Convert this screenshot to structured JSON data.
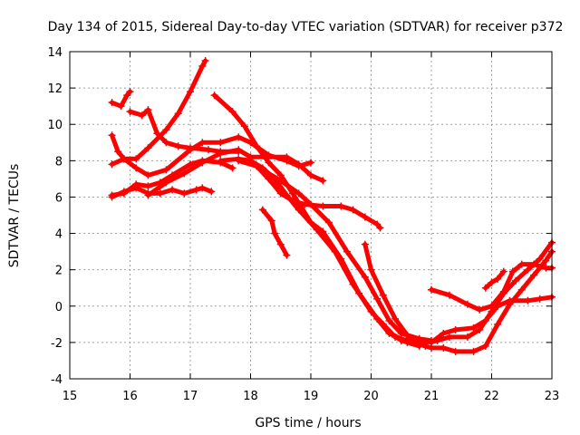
{
  "chart_data": {
    "type": "line",
    "title": "Day 134 of 2015, Sidereal Day-to-day VTEC variation (SDTVAR) for receiver p372",
    "xlabel": "GPS time / hours",
    "ylabel": "SDTVAR / TECUs",
    "xlim": [
      15,
      23
    ],
    "ylim": [
      -4,
      14
    ],
    "x_ticks": [
      "15",
      "16",
      "17",
      "18",
      "19",
      "20",
      "21",
      "22",
      "23"
    ],
    "y_ticks": [
      "-4",
      "-2",
      "0",
      "2",
      "4",
      "6",
      "8",
      "10",
      "12",
      "14"
    ],
    "grid": true,
    "marker": "plus",
    "color": "#ff0000",
    "series": [
      {
        "name": "track-1",
        "points": [
          [
            15.7,
            11.2
          ],
          [
            15.85,
            11.0
          ],
          [
            15.95,
            11.6
          ],
          [
            16.0,
            11.8
          ]
        ]
      },
      {
        "name": "track-2",
        "points": [
          [
            16.0,
            10.7
          ],
          [
            16.2,
            10.5
          ],
          [
            16.3,
            10.8
          ],
          [
            16.45,
            9.5
          ],
          [
            16.6,
            9.0
          ],
          [
            16.8,
            8.8
          ],
          [
            17.0,
            8.7
          ],
          [
            17.3,
            8.6
          ],
          [
            17.5,
            8.5
          ],
          [
            17.8,
            8.5
          ]
        ]
      },
      {
        "name": "track-3",
        "points": [
          [
            15.7,
            9.4
          ],
          [
            15.8,
            8.5
          ],
          [
            15.9,
            8.1
          ],
          [
            16.1,
            8.1
          ],
          [
            16.3,
            8.7
          ],
          [
            16.6,
            9.7
          ],
          [
            16.8,
            10.6
          ],
          [
            17.0,
            11.8
          ],
          [
            17.2,
            13.2
          ],
          [
            17.25,
            13.5
          ]
        ]
      },
      {
        "name": "track-4",
        "points": [
          [
            15.7,
            7.8
          ],
          [
            15.9,
            8.1
          ],
          [
            16.1,
            7.6
          ],
          [
            16.3,
            7.2
          ],
          [
            16.6,
            7.5
          ],
          [
            17.0,
            8.6
          ],
          [
            17.2,
            9.0
          ],
          [
            17.5,
            9.0
          ],
          [
            17.8,
            9.3
          ],
          [
            18.0,
            9.0
          ],
          [
            18.3,
            8.3
          ],
          [
            18.6,
            8.0
          ],
          [
            18.8,
            7.7
          ],
          [
            19.0,
            7.9
          ]
        ]
      },
      {
        "name": "track-5",
        "points": [
          [
            15.7,
            6.1
          ],
          [
            15.9,
            6.2
          ],
          [
            16.1,
            6.7
          ],
          [
            16.3,
            6.6
          ],
          [
            16.5,
            6.8
          ],
          [
            16.7,
            7.2
          ],
          [
            17.0,
            7.8
          ],
          [
            17.2,
            8.0
          ],
          [
            17.5,
            7.9
          ],
          [
            17.7,
            7.6
          ]
        ]
      },
      {
        "name": "track-6",
        "points": [
          [
            15.7,
            6.0
          ],
          [
            15.9,
            6.3
          ],
          [
            16.1,
            6.5
          ],
          [
            16.3,
            6.2
          ],
          [
            16.5,
            6.2
          ],
          [
            16.7,
            6.4
          ],
          [
            16.9,
            6.2
          ],
          [
            17.1,
            6.4
          ],
          [
            17.2,
            6.5
          ],
          [
            17.35,
            6.3
          ]
        ]
      },
      {
        "name": "track-7",
        "points": [
          [
            16.3,
            6.1
          ],
          [
            16.6,
            6.8
          ],
          [
            16.9,
            7.3
          ],
          [
            17.2,
            7.9
          ],
          [
            17.5,
            8.4
          ],
          [
            17.8,
            8.6
          ],
          [
            18.0,
            8.2
          ],
          [
            18.3,
            8.2
          ],
          [
            18.6,
            8.2
          ],
          [
            18.8,
            7.8
          ],
          [
            19.0,
            7.2
          ],
          [
            19.2,
            6.9
          ]
        ]
      },
      {
        "name": "track-8",
        "points": [
          [
            17.8,
            8.0
          ],
          [
            18.1,
            7.7
          ],
          [
            18.3,
            7.0
          ],
          [
            18.5,
            6.2
          ],
          [
            18.7,
            5.8
          ],
          [
            18.9,
            5.6
          ],
          [
            19.2,
            5.5
          ],
          [
            19.5,
            5.5
          ],
          [
            19.7,
            5.3
          ],
          [
            19.9,
            4.9
          ],
          [
            20.1,
            4.5
          ],
          [
            20.15,
            4.3
          ]
        ]
      },
      {
        "name": "track-9",
        "points": [
          [
            17.4,
            11.6
          ],
          [
            17.7,
            10.7
          ],
          [
            17.9,
            9.9
          ],
          [
            18.1,
            8.8
          ],
          [
            18.3,
            7.9
          ],
          [
            18.5,
            7.2
          ],
          [
            18.7,
            6.2
          ],
          [
            19.0,
            4.6
          ],
          [
            19.2,
            4.1
          ],
          [
            19.5,
            2.6
          ],
          [
            19.8,
            0.7
          ],
          [
            20.1,
            -0.7
          ],
          [
            20.3,
            -1.5
          ],
          [
            20.5,
            -1.8
          ],
          [
            20.7,
            -2.0
          ],
          [
            20.9,
            -2.2
          ]
        ]
      },
      {
        "name": "track-10",
        "points": [
          [
            17.5,
            8.0
          ],
          [
            17.8,
            8.1
          ],
          [
            18.0,
            8.0
          ],
          [
            18.2,
            7.6
          ],
          [
            18.4,
            7.0
          ],
          [
            18.6,
            6.1
          ],
          [
            18.8,
            5.3
          ],
          [
            19.1,
            4.2
          ],
          [
            19.4,
            3.0
          ],
          [
            19.7,
            1.2
          ],
          [
            20.0,
            -0.3
          ],
          [
            20.2,
            -1.0
          ],
          [
            20.4,
            -1.7
          ],
          [
            20.6,
            -2.0
          ],
          [
            20.8,
            -2.2
          ]
        ]
      },
      {
        "name": "track-11",
        "points": [
          [
            18.2,
            7.5
          ],
          [
            18.5,
            6.9
          ],
          [
            18.8,
            6.2
          ],
          [
            19.0,
            5.6
          ],
          [
            19.3,
            4.6
          ],
          [
            19.6,
            3.0
          ],
          [
            19.9,
            1.6
          ],
          [
            20.1,
            0.4
          ],
          [
            20.3,
            -0.8
          ],
          [
            20.5,
            -1.5
          ],
          [
            20.8,
            -1.8
          ],
          [
            21.0,
            -1.9
          ]
        ]
      },
      {
        "name": "track-12",
        "points": [
          [
            18.2,
            5.3
          ],
          [
            18.35,
            4.7
          ],
          [
            18.4,
            4.0
          ],
          [
            18.5,
            3.4
          ],
          [
            18.6,
            2.8
          ]
        ]
      },
      {
        "name": "track-13",
        "points": [
          [
            19.9,
            3.4
          ],
          [
            20.0,
            2.0
          ],
          [
            20.2,
            0.6
          ],
          [
            20.4,
            -0.7
          ],
          [
            20.6,
            -1.6
          ],
          [
            20.8,
            -1.8
          ],
          [
            21.0,
            -2.0
          ],
          [
            21.2,
            -1.5
          ],
          [
            21.4,
            -1.3
          ],
          [
            21.7,
            -1.2
          ],
          [
            21.9,
            -0.8
          ],
          [
            22.1,
            0.0
          ],
          [
            22.3,
            0.3
          ],
          [
            22.6,
            0.3
          ],
          [
            22.8,
            0.4
          ],
          [
            23.0,
            0.5
          ]
        ]
      },
      {
        "name": "track-14",
        "points": [
          [
            20.5,
            -1.9
          ],
          [
            20.8,
            -2.1
          ],
          [
            21.0,
            -2.3
          ],
          [
            21.2,
            -2.3
          ],
          [
            21.4,
            -2.5
          ],
          [
            21.7,
            -2.5
          ],
          [
            21.9,
            -2.2
          ],
          [
            22.1,
            -1.0
          ],
          [
            22.3,
            0.1
          ],
          [
            22.5,
            0.9
          ],
          [
            22.7,
            1.7
          ],
          [
            22.9,
            2.5
          ],
          [
            23.0,
            3.0
          ]
        ]
      },
      {
        "name": "track-15",
        "points": [
          [
            20.6,
            -1.8
          ],
          [
            20.9,
            -2.0
          ],
          [
            21.1,
            -1.9
          ],
          [
            21.3,
            -1.7
          ],
          [
            21.6,
            -1.7
          ],
          [
            21.8,
            -1.3
          ],
          [
            22.0,
            -0.3
          ],
          [
            22.2,
            0.7
          ],
          [
            22.4,
            1.4
          ],
          [
            22.6,
            2.0
          ],
          [
            22.8,
            2.6
          ],
          [
            23.0,
            3.5
          ]
        ]
      },
      {
        "name": "track-16",
        "points": [
          [
            21.0,
            0.9
          ],
          [
            21.3,
            0.6
          ],
          [
            21.6,
            0.1
          ],
          [
            21.8,
            -0.2
          ],
          [
            22.0,
            0.0
          ],
          [
            22.2,
            0.8
          ],
          [
            22.35,
            1.9
          ],
          [
            22.5,
            2.3
          ],
          [
            22.7,
            2.3
          ],
          [
            22.9,
            2.1
          ],
          [
            23.0,
            2.1
          ]
        ]
      },
      {
        "name": "track-17",
        "points": [
          [
            21.9,
            1.0
          ],
          [
            22.0,
            1.3
          ],
          [
            22.1,
            1.5
          ],
          [
            22.2,
            1.9
          ]
        ]
      }
    ]
  }
}
